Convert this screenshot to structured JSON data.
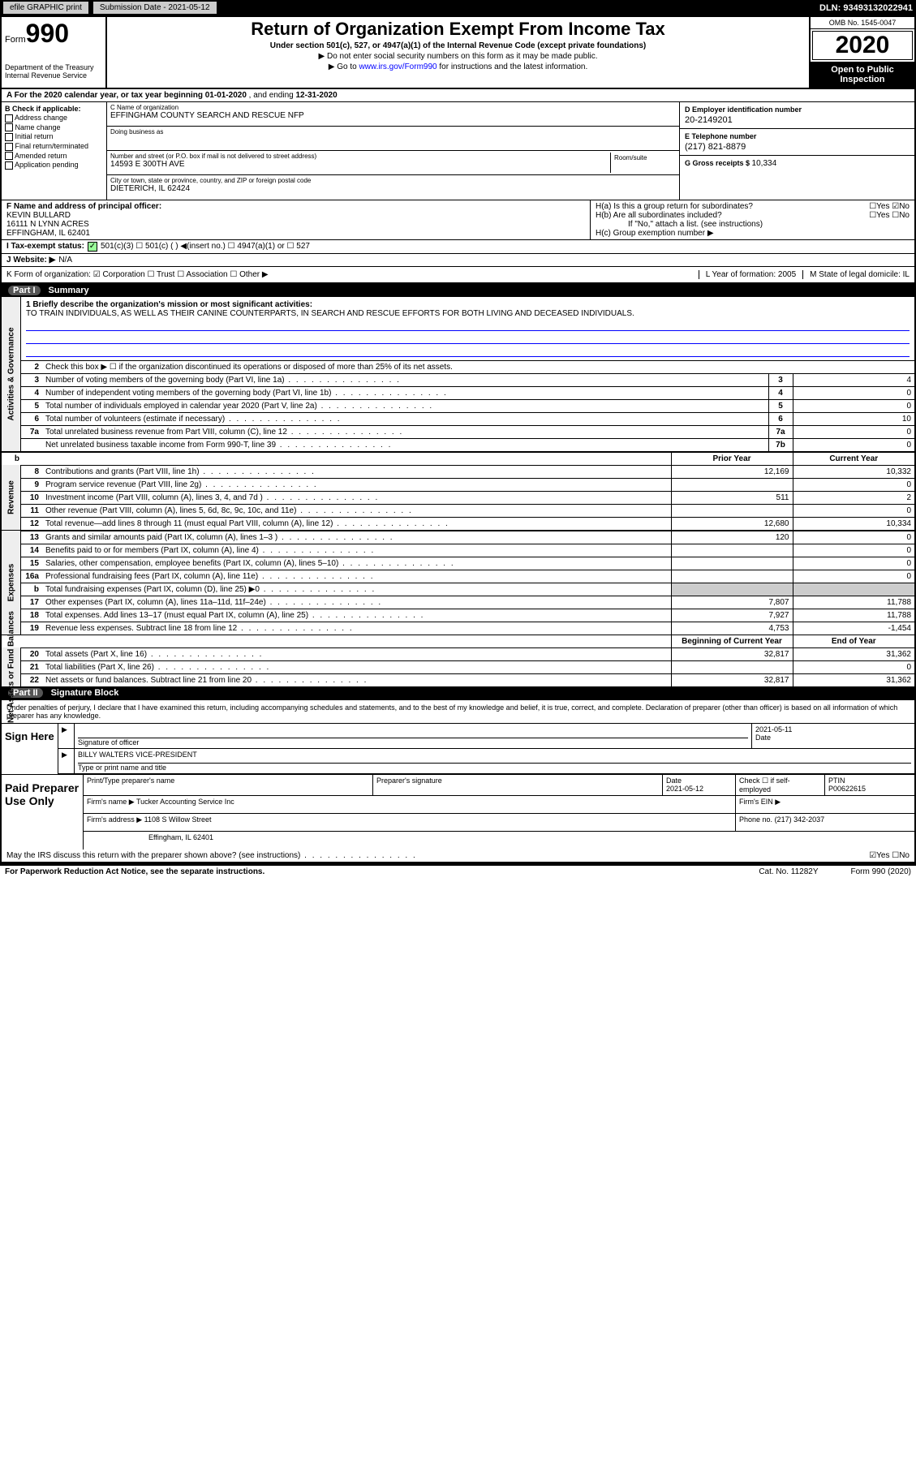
{
  "topbar": {
    "efile": "efile GRAPHIC print",
    "submission": "Submission Date - 2021-05-12",
    "dln": "DLN: 93493132022941"
  },
  "header": {
    "form_prefix": "Form",
    "form_number": "990",
    "dept": "Department of the Treasury\nInternal Revenue Service",
    "title": "Return of Organization Exempt From Income Tax",
    "sub1": "Under section 501(c), 527, or 4947(a)(1) of the Internal Revenue Code (except private foundations)",
    "sub2": "▶ Do not enter social security numbers on this form as it may be made public.",
    "sub3_pre": "▶ Go to ",
    "sub3_link": "www.irs.gov/Form990",
    "sub3_post": " for instructions and the latest information.",
    "omb": "OMB No. 1545-0047",
    "year": "2020",
    "open": "Open to Public Inspection"
  },
  "row_a": {
    "text_pre": "A For the 2020 calendar year, or tax year beginning ",
    "begin": "01-01-2020",
    "text_mid": " , and ending ",
    "end": "12-31-2020"
  },
  "col_b": {
    "header": "B Check if applicable:",
    "items": [
      "Address change",
      "Name change",
      "Initial return",
      "Final return/terminated",
      "Amended return",
      "Application pending"
    ]
  },
  "col_c": {
    "name_lbl": "C Name of organization",
    "name": "EFFINGHAM COUNTY SEARCH AND RESCUE NFP",
    "dba_lbl": "Doing business as",
    "dba": "",
    "addr_lbl": "Number and street (or P.O. box if mail is not delivered to street address)",
    "room_lbl": "Room/suite",
    "addr": "14593 E 300TH AVE",
    "city_lbl": "City or town, state or province, country, and ZIP or foreign postal code",
    "city": "DIETERICH, IL  62424"
  },
  "col_de": {
    "d_lbl": "D Employer identification number",
    "d_val": "20-2149201",
    "e_lbl": "E Telephone number",
    "e_val": "(217) 821-8879",
    "g_lbl": "G Gross receipts $ ",
    "g_val": "10,334"
  },
  "col_f": {
    "lbl": "F Name and address of principal officer:",
    "name": "KEVIN BULLARD",
    "addr1": "16111 N LYNN ACRES",
    "addr2": "EFFINGHAM, IL  62401"
  },
  "col_h": {
    "ha": "H(a)  Is this a group return for subordinates?",
    "ha_ans": "☐Yes  ☑No",
    "hb": "H(b)  Are all subordinates included?",
    "hb_ans": "☐Yes  ☐No",
    "hb_note": "If \"No,\" attach a list. (see instructions)",
    "hc": "H(c)  Group exemption number ▶"
  },
  "row_i": {
    "lbl": "I Tax-exempt status:",
    "opts": "501(c)(3)     ☐  501(c) (  ) ◀(insert no.)     ☐  4947(a)(1) or   ☐  527"
  },
  "row_j": {
    "lbl": "J  Website: ▶",
    "val": "  N/A"
  },
  "row_k": {
    "k": "K Form of organization:  ☑ Corporation  ☐ Trust  ☐ Association  ☐ Other ▶",
    "l": "L Year of formation: 2005",
    "m": "M State of legal domicile: IL"
  },
  "part1": {
    "title": "Part I",
    "name": "Summary",
    "mission_lbl": "1 Briefly describe the organization's mission or most significant activities:",
    "mission": "TO TRAIN INDIVIDUALS, AS WELL AS THEIR CANINE COUNTERPARTS, IN SEARCH AND RESCUE EFFORTS FOR BOTH LIVING AND DECEASED INDIVIDUALS.",
    "line2": "Check this box ▶ ☐ if the organization discontinued its operations or disposed of more than 25% of its net assets.",
    "sections": {
      "gov": "Activities & Governance",
      "rev": "Revenue",
      "exp": "Expenses",
      "net": "Net Assets or Fund Balances"
    },
    "rows_gov": [
      {
        "n": "3",
        "d": "Number of voting members of the governing body (Part VI, line 1a)",
        "b": "3",
        "v": "4"
      },
      {
        "n": "4",
        "d": "Number of independent voting members of the governing body (Part VI, line 1b)",
        "b": "4",
        "v": "0"
      },
      {
        "n": "5",
        "d": "Total number of individuals employed in calendar year 2020 (Part V, line 2a)",
        "b": "5",
        "v": "0"
      },
      {
        "n": "6",
        "d": "Total number of volunteers (estimate if necessary)",
        "b": "6",
        "v": "10"
      },
      {
        "n": "7a",
        "d": "Total unrelated business revenue from Part VIII, column (C), line 12",
        "b": "7a",
        "v": "0"
      },
      {
        "n": "",
        "d": "Net unrelated business taxable income from Form 990-T, line 39",
        "b": "7b",
        "v": "0"
      }
    ],
    "col_hdrs": {
      "py": "Prior Year",
      "cy": "Current Year"
    },
    "rows_rev": [
      {
        "n": "8",
        "d": "Contributions and grants (Part VIII, line 1h)",
        "py": "12,169",
        "cy": "10,332"
      },
      {
        "n": "9",
        "d": "Program service revenue (Part VIII, line 2g)",
        "py": "",
        "cy": "0"
      },
      {
        "n": "10",
        "d": "Investment income (Part VIII, column (A), lines 3, 4, and 7d )",
        "py": "511",
        "cy": "2"
      },
      {
        "n": "11",
        "d": "Other revenue (Part VIII, column (A), lines 5, 6d, 8c, 9c, 10c, and 11e)",
        "py": "",
        "cy": "0"
      },
      {
        "n": "12",
        "d": "Total revenue—add lines 8 through 11 (must equal Part VIII, column (A), line 12)",
        "py": "12,680",
        "cy": "10,334"
      }
    ],
    "rows_exp": [
      {
        "n": "13",
        "d": "Grants and similar amounts paid (Part IX, column (A), lines 1–3 )",
        "py": "120",
        "cy": "0"
      },
      {
        "n": "14",
        "d": "Benefits paid to or for members (Part IX, column (A), line 4)",
        "py": "",
        "cy": "0"
      },
      {
        "n": "15",
        "d": "Salaries, other compensation, employee benefits (Part IX, column (A), lines 5–10)",
        "py": "",
        "cy": "0"
      },
      {
        "n": "16a",
        "d": "Professional fundraising fees (Part IX, column (A), line 11e)",
        "py": "",
        "cy": "0"
      },
      {
        "n": "b",
        "d": "Total fundraising expenses (Part IX, column (D), line 25) ▶0",
        "py": "shade",
        "cy": "shade"
      },
      {
        "n": "17",
        "d": "Other expenses (Part IX, column (A), lines 11a–11d, 11f–24e)",
        "py": "7,807",
        "cy": "11,788"
      },
      {
        "n": "18",
        "d": "Total expenses. Add lines 13–17 (must equal Part IX, column (A), line 25)",
        "py": "7,927",
        "cy": "11,788"
      },
      {
        "n": "19",
        "d": "Revenue less expenses. Subtract line 18 from line 12",
        "py": "4,753",
        "cy": "-1,454"
      }
    ],
    "col_hdrs2": {
      "py": "Beginning of Current Year",
      "cy": "End of Year"
    },
    "rows_net": [
      {
        "n": "20",
        "d": "Total assets (Part X, line 16)",
        "py": "32,817",
        "cy": "31,362"
      },
      {
        "n": "21",
        "d": "Total liabilities (Part X, line 26)",
        "py": "",
        "cy": "0"
      },
      {
        "n": "22",
        "d": "Net assets or fund balances. Subtract line 21 from line 20",
        "py": "32,817",
        "cy": "31,362"
      }
    ]
  },
  "part2": {
    "title": "Part II",
    "name": "Signature Block",
    "decl": "Under penalties of perjury, I declare that I have examined this return, including accompanying schedules and statements, and to the best of my knowledge and belief, it is true, correct, and complete. Declaration of preparer (other than officer) is based on all information of which preparer has any knowledge.",
    "sign_here": "Sign Here",
    "sig_of_officer": "Signature of officer",
    "date_lbl": "Date",
    "date_val": "2021-05-11",
    "officer_name": "BILLY WALTERS  VICE-PRESIDENT",
    "type_name": "Type or print name and title",
    "paid": "Paid Preparer Use Only",
    "prep_name_lbl": "Print/Type preparer's name",
    "prep_sig_lbl": "Preparer's signature",
    "prep_date_lbl": "Date",
    "prep_date": "2021-05-12",
    "check_self": "Check ☐ if self-employed",
    "ptin_lbl": "PTIN",
    "ptin": "P00622615",
    "firm_name_lbl": "Firm's name   ▶",
    "firm_name": "Tucker Accounting Service Inc",
    "firm_ein_lbl": "Firm's EIN ▶",
    "firm_addr_lbl": "Firm's address ▶",
    "firm_addr1": "1108 S Willow Street",
    "firm_addr2": "Effingham, IL  62401",
    "phone_lbl": "Phone no.",
    "phone": "(217) 342-2037",
    "discuss": "May the IRS discuss this return with the preparer shown above? (see instructions)",
    "discuss_ans": "☑Yes  ☐No"
  },
  "footer": {
    "left": "For Paperwork Reduction Act Notice, see the separate instructions.",
    "mid": "Cat. No. 11282Y",
    "right": "Form 990 (2020)"
  }
}
